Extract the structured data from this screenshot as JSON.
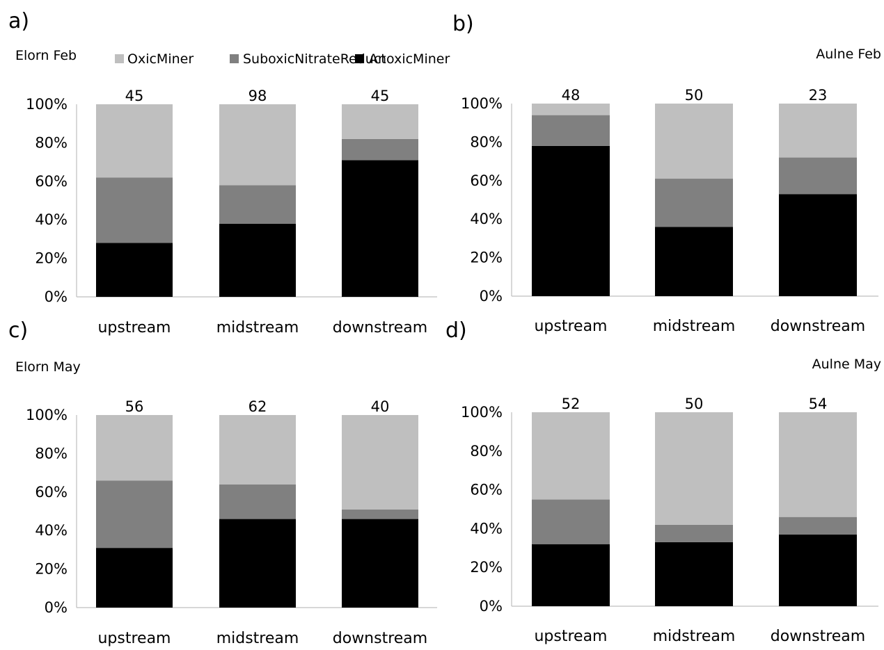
{
  "legend": {
    "items": [
      {
        "name": "OxicMiner",
        "color": "#bfbfbf"
      },
      {
        "name": "SuboxicNitrateReduct",
        "color": "#808080"
      },
      {
        "name": "AnoxicMiner",
        "color": "#000000"
      }
    ]
  },
  "chart_data": [
    {
      "type": "bar",
      "stacked": "percent",
      "panel": "a)",
      "title": "Elorn Feb",
      "categories": [
        "upstream",
        "midstream",
        "downstream"
      ],
      "yticks": [
        "0%",
        "20%",
        "40%",
        "60%",
        "80%",
        "100%"
      ],
      "ylim": [
        0,
        100
      ],
      "grid": false,
      "series": [
        {
          "name": "AnoxicMiner",
          "color": "#000000",
          "values": [
            28,
            38,
            71
          ]
        },
        {
          "name": "SuboxicNitrateReduct",
          "color": "#808080",
          "values": [
            34,
            20,
            11
          ]
        },
        {
          "name": "OxicMiner",
          "color": "#bfbfbf",
          "values": [
            38,
            42,
            18
          ]
        }
      ],
      "data_labels": [
        "45",
        "98",
        "45"
      ]
    },
    {
      "type": "bar",
      "stacked": "percent",
      "panel": "b)",
      "title": "Aulne Feb",
      "categories": [
        "upstream",
        "midstream",
        "downstream"
      ],
      "yticks": [
        "0%",
        "20%",
        "40%",
        "60%",
        "80%",
        "100%"
      ],
      "ylim": [
        0,
        100
      ],
      "grid": false,
      "series": [
        {
          "name": "AnoxicMiner",
          "color": "#000000",
          "values": [
            78,
            36,
            53
          ]
        },
        {
          "name": "SuboxicNitrateReduct",
          "color": "#808080",
          "values": [
            16,
            25,
            19
          ]
        },
        {
          "name": "OxicMiner",
          "color": "#bfbfbf",
          "values": [
            6,
            39,
            28
          ]
        }
      ],
      "data_labels": [
        "48",
        "50",
        "23"
      ]
    },
    {
      "type": "bar",
      "stacked": "percent",
      "panel": "c)",
      "title": "Elorn May",
      "categories": [
        "upstream",
        "midstream",
        "downstream"
      ],
      "yticks": [
        "0%",
        "20%",
        "40%",
        "60%",
        "80%",
        "100%"
      ],
      "ylim": [
        0,
        100
      ],
      "grid": false,
      "series": [
        {
          "name": "AnoxicMiner",
          "color": "#000000",
          "values": [
            31,
            46,
            46
          ]
        },
        {
          "name": "SuboxicNitrateReduct",
          "color": "#808080",
          "values": [
            35,
            18,
            5
          ]
        },
        {
          "name": "OxicMiner",
          "color": "#bfbfbf",
          "values": [
            34,
            36,
            49
          ]
        }
      ],
      "data_labels": [
        "56",
        "62",
        "40"
      ]
    },
    {
      "type": "bar",
      "stacked": "percent",
      "panel": "d)",
      "title": "Aulne May",
      "categories": [
        "upstream",
        "midstream",
        "downstream"
      ],
      "yticks": [
        "0%",
        "20%",
        "40%",
        "60%",
        "80%",
        "100%"
      ],
      "ylim": [
        0,
        100
      ],
      "grid": false,
      "series": [
        {
          "name": "AnoxicMiner",
          "color": "#000000",
          "values": [
            32,
            33,
            37
          ]
        },
        {
          "name": "SuboxicNitrateReduct",
          "color": "#808080",
          "values": [
            23,
            9,
            9
          ]
        },
        {
          "name": "OxicMiner",
          "color": "#bfbfbf",
          "values": [
            45,
            58,
            54
          ]
        }
      ],
      "data_labels": [
        "52",
        "50",
        "54"
      ]
    }
  ]
}
